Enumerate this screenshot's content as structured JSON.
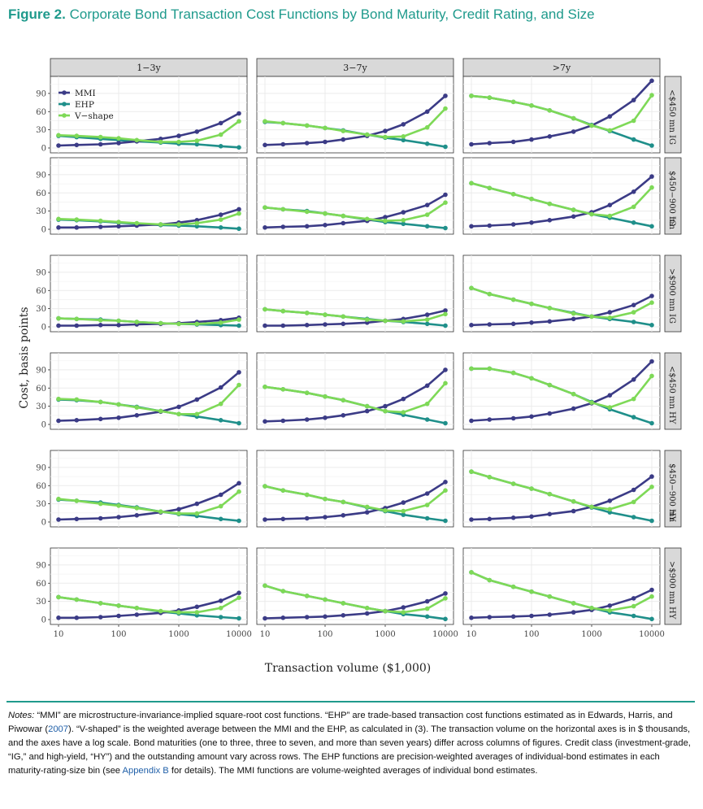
{
  "figure": {
    "label": "Figure 2.",
    "title": "Corporate Bond Transaction Cost Functions by Bond Maturity, Credit Rating, and Size"
  },
  "notes": {
    "lead": "Notes:",
    "text_a": " “MMI” are microstructure-invariance-implied square-root cost functions. “EHP” are trade-based transaction cost functions estimated as in Edwards, Harris, and Piwowar (",
    "cite_year": "2007",
    "text_b": "). “V-shaped” is the weighted average between the MMI and the EHP, as calculated in (3). The transaction volume on the horizontal axes is in $ thousands, and the axes have a log scale. Bond maturities (one to three, three to seven, and more than seven years) differ across columns of figures. Credit class (investment-grade, “IG,” and high-yield, “HY”) and the outstanding amount vary across rows. The EHP functions are precision-weighted averages of individual-bond estimates in each maturity-rating-size bin (see ",
    "appendix_link": "Appendix B",
    "text_c": " for details). The MMI functions are volume-weighted averages of individual bond estimates."
  },
  "colors": {
    "MMI": "#3b3b86",
    "EHP": "#1f8f8a",
    "V-shape": "#7ed957",
    "title": "#1f9a8c",
    "strip_bg": "#d9d9d9",
    "grid": "#ebebeb"
  },
  "chart_data": {
    "type": "line",
    "xlabel": "Transaction volume ($1,000)",
    "ylabel": "Cost, basis points",
    "x_scale": "log",
    "xlim": [
      10,
      10000
    ],
    "ylim": [
      0,
      110
    ],
    "x_ticks": [
      10,
      100,
      1000,
      10000
    ],
    "x_tick_labels": [
      "10",
      "100",
      "1000",
      "10000"
    ],
    "y_ticks": [
      0,
      30,
      60,
      90
    ],
    "y_tick_labels": [
      "0",
      "30",
      "60",
      "90"
    ],
    "y_minor_ticks": [
      15,
      45,
      75,
      105
    ],
    "legend": {
      "placement": "top-left of first panel",
      "entries": [
        "MMI",
        "EHP",
        "V−shape"
      ]
    },
    "x": [
      10,
      20,
      50,
      100,
      200,
      500,
      1000,
      2000,
      5000,
      10000
    ],
    "columns": [
      "1−3y",
      "3−7y",
      ">7y"
    ],
    "rows": [
      {
        "rating": "IG",
        "size": "<$450 mn"
      },
      {
        "rating": "IG",
        "size": "$450−900 mn"
      },
      {
        "rating": "IG",
        "size": ">$900 mn"
      },
      {
        "rating": "HY",
        "size": "<$450 mn"
      },
      {
        "rating": "HY",
        "size": "$450−900 mn"
      },
      {
        "rating": "HY",
        "size": ">$900 mn"
      }
    ],
    "panels": [
      [
        {
          "MMI": [
            4,
            5,
            6,
            8,
            11,
            15,
            20,
            27,
            41,
            57
          ],
          "EHP": [
            20,
            18,
            15,
            13,
            11,
            9,
            7,
            6,
            3,
            1
          ],
          "V": [
            21,
            20,
            18,
            16,
            13,
            10,
            10,
            12,
            22,
            44
          ]
        },
        {
          "MMI": [
            3,
            3,
            4,
            5,
            6,
            8,
            11,
            15,
            24,
            33
          ],
          "EHP": [
            16,
            15,
            13,
            11,
            9,
            7,
            6,
            5,
            3,
            1
          ],
          "V": [
            17,
            16,
            14,
            12,
            10,
            8,
            8,
            10,
            16,
            26
          ]
        },
        {
          "MMI": [
            2,
            2,
            3,
            3,
            4,
            5,
            6,
            8,
            11,
            15
          ],
          "EHP": [
            14,
            13,
            12,
            10,
            8,
            6,
            5,
            4,
            3,
            2
          ],
          "V": [
            14,
            13,
            11,
            10,
            8,
            6,
            5,
            5,
            7,
            12
          ]
        },
        {
          "MMI": [
            6,
            7,
            9,
            11,
            15,
            21,
            29,
            41,
            61,
            86
          ],
          "EHP": [
            41,
            40,
            37,
            33,
            29,
            22,
            17,
            13,
            7,
            2
          ],
          "V": [
            42,
            41,
            37,
            33,
            28,
            22,
            17,
            17,
            34,
            65
          ]
        },
        {
          "MMI": [
            4,
            5,
            6,
            8,
            11,
            16,
            21,
            30,
            45,
            64
          ],
          "EHP": [
            37,
            35,
            32,
            28,
            24,
            17,
            13,
            10,
            5,
            2
          ],
          "V": [
            38,
            35,
            30,
            27,
            23,
            17,
            14,
            14,
            26,
            50
          ]
        },
        {
          "MMI": [
            3,
            3,
            4,
            6,
            8,
            11,
            15,
            21,
            31,
            44
          ],
          "EHP": [
            37,
            33,
            27,
            23,
            19,
            13,
            10,
            7,
            4,
            2
          ],
          "V": [
            37,
            33,
            27,
            23,
            19,
            14,
            12,
            12,
            19,
            36
          ]
        }
      ],
      [
        {
          "MMI": [
            5,
            6,
            8,
            10,
            14,
            20,
            28,
            39,
            60,
            86
          ],
          "EHP": [
            43,
            41,
            37,
            33,
            29,
            22,
            17,
            13,
            7,
            2
          ],
          "V": [
            44,
            41,
            37,
            33,
            28,
            22,
            18,
            19,
            34,
            65
          ]
        },
        {
          "MMI": [
            3,
            4,
            5,
            7,
            10,
            14,
            20,
            28,
            40,
            57
          ],
          "EHP": [
            36,
            33,
            30,
            26,
            22,
            16,
            12,
            9,
            5,
            2
          ],
          "V": [
            36,
            33,
            29,
            26,
            22,
            17,
            14,
            15,
            24,
            44
          ]
        },
        {
          "MMI": [
            2,
            2,
            3,
            4,
            5,
            7,
            10,
            13,
            20,
            27
          ],
          "EHP": [
            29,
            26,
            23,
            20,
            17,
            13,
            10,
            8,
            5,
            2
          ],
          "V": [
            29,
            26,
            23,
            20,
            17,
            12,
            10,
            9,
            12,
            21
          ]
        },
        {
          "MMI": [
            5,
            6,
            8,
            11,
            15,
            22,
            30,
            42,
            64,
            90
          ],
          "EHP": [
            62,
            58,
            52,
            46,
            40,
            30,
            22,
            16,
            8,
            2
          ],
          "V": [
            62,
            58,
            52,
            46,
            40,
            30,
            22,
            20,
            34,
            68
          ]
        },
        {
          "MMI": [
            4,
            5,
            6,
            8,
            11,
            16,
            23,
            32,
            47,
            66
          ],
          "EHP": [
            59,
            52,
            45,
            38,
            33,
            24,
            18,
            12,
            6,
            2
          ],
          "V": [
            59,
            52,
            45,
            38,
            33,
            25,
            19,
            18,
            28,
            52
          ]
        },
        {
          "MMI": [
            2,
            3,
            4,
            5,
            7,
            10,
            14,
            20,
            30,
            43
          ],
          "EHP": [
            56,
            47,
            39,
            33,
            27,
            19,
            14,
            9,
            5,
            1
          ],
          "V": [
            56,
            47,
            39,
            33,
            27,
            19,
            14,
            12,
            18,
            35
          ]
        }
      ],
      [
        {
          "MMI": [
            6,
            8,
            10,
            14,
            19,
            27,
            37,
            52,
            79,
            111
          ],
          "EHP": [
            86,
            83,
            76,
            70,
            62,
            49,
            38,
            28,
            14,
            4
          ],
          "V": [
            86,
            83,
            76,
            70,
            62,
            49,
            37,
            29,
            45,
            87
          ]
        },
        {
          "MMI": [
            5,
            6,
            8,
            11,
            15,
            21,
            28,
            40,
            62,
            87
          ],
          "EHP": [
            76,
            68,
            58,
            50,
            42,
            32,
            25,
            19,
            11,
            5
          ],
          "V": [
            76,
            68,
            58,
            50,
            42,
            32,
            25,
            22,
            37,
            69
          ]
        },
        {
          "MMI": [
            3,
            4,
            5,
            7,
            9,
            13,
            17,
            24,
            36,
            51
          ],
          "EHP": [
            64,
            54,
            45,
            38,
            31,
            23,
            17,
            13,
            8,
            3
          ],
          "V": [
            64,
            54,
            45,
            38,
            31,
            22,
            17,
            15,
            24,
            40
          ]
        },
        {
          "MMI": [
            6,
            8,
            10,
            13,
            18,
            26,
            35,
            48,
            74,
            104
          ],
          "EHP": [
            92,
            92,
            85,
            76,
            65,
            50,
            37,
            25,
            12,
            2
          ],
          "V": [
            92,
            92,
            85,
            76,
            65,
            50,
            36,
            28,
            42,
            80
          ]
        },
        {
          "MMI": [
            4,
            5,
            7,
            9,
            13,
            18,
            25,
            35,
            53,
            75
          ],
          "EHP": [
            83,
            74,
            63,
            55,
            46,
            34,
            24,
            16,
            8,
            2
          ],
          "V": [
            83,
            74,
            63,
            55,
            46,
            34,
            25,
            21,
            33,
            58
          ]
        },
        {
          "MMI": [
            3,
            4,
            5,
            6,
            8,
            12,
            16,
            23,
            35,
            49
          ],
          "EHP": [
            78,
            65,
            54,
            46,
            38,
            27,
            19,
            12,
            6,
            1
          ],
          "V": [
            78,
            65,
            54,
            46,
            38,
            27,
            19,
            15,
            22,
            38
          ]
        }
      ]
    ]
  }
}
